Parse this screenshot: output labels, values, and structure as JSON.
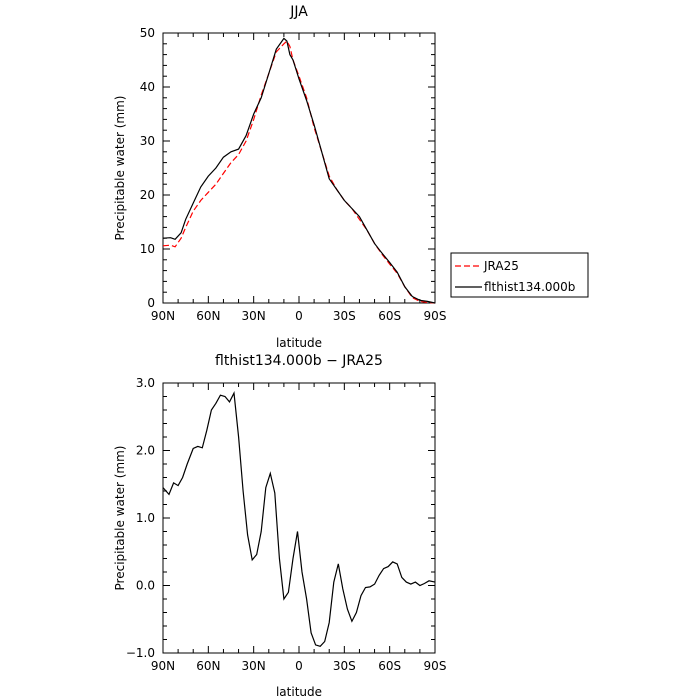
{
  "chart_data": [
    {
      "type": "line",
      "title": "JJA",
      "xlabel": "latitude",
      "ylabel": "Precipitable water  (mm)",
      "xlim": [
        90,
        -90
      ],
      "ylim": [
        0,
        50
      ],
      "x_tick_values": [
        90,
        60,
        30,
        0,
        -30,
        -60,
        -90
      ],
      "x_tick_labels": [
        "90N",
        "60N",
        "30N",
        "0",
        "30S",
        "60S",
        "90S"
      ],
      "y_tick_values": [
        0,
        10,
        20,
        30,
        40,
        50
      ],
      "y_tick_labels": [
        "0",
        "10",
        "20",
        "30",
        "40",
        "50"
      ],
      "legend_position": "right",
      "series": [
        {
          "name": "JRA25",
          "color": "#ff0000",
          "dash": "dashed",
          "x": [
            90,
            85,
            82,
            78,
            75,
            70,
            65,
            60,
            55,
            50,
            45,
            40,
            35,
            30,
            25,
            20,
            15,
            10,
            8,
            6,
            4,
            0,
            -5,
            -10,
            -15,
            -20,
            -25,
            -30,
            -35,
            -40,
            -45,
            -50,
            -55,
            -60,
            -65,
            -70,
            -75,
            -80,
            -85,
            -90
          ],
          "values": [
            10.6,
            10.7,
            10.4,
            12.0,
            14.0,
            17.0,
            19.0,
            20.5,
            22.0,
            24.0,
            26.0,
            27.5,
            30.0,
            34.0,
            38.5,
            42.5,
            46.5,
            48.0,
            48.5,
            47.5,
            45.0,
            42.0,
            38.0,
            32.5,
            28.0,
            23.5,
            21.0,
            19.0,
            17.5,
            15.5,
            13.5,
            11.0,
            9.0,
            7.2,
            5.5,
            3.0,
            1.0,
            0.3,
            0.1,
            0.0
          ]
        },
        {
          "name": "flthist134.000b",
          "color": "#000000",
          "dash": "solid",
          "x": [
            90,
            85,
            82,
            78,
            75,
            70,
            65,
            60,
            55,
            50,
            45,
            40,
            35,
            30,
            25,
            20,
            15,
            10,
            8,
            6,
            4,
            0,
            -5,
            -10,
            -15,
            -20,
            -25,
            -30,
            -35,
            -40,
            -45,
            -50,
            -55,
            -60,
            -65,
            -70,
            -75,
            -80,
            -85,
            -90
          ],
          "values": [
            12.0,
            12.1,
            11.8,
            13.0,
            15.5,
            18.5,
            21.5,
            23.5,
            25.0,
            27.0,
            28.0,
            28.5,
            31.0,
            35.0,
            38.0,
            42.5,
            47.0,
            49.0,
            48.5,
            46.0,
            45.0,
            41.5,
            37.5,
            33.0,
            28.0,
            23.0,
            21.0,
            19.0,
            17.5,
            16.0,
            13.5,
            11.0,
            9.2,
            7.5,
            5.7,
            3.0,
            1.2,
            0.5,
            0.3,
            0.0
          ]
        }
      ]
    },
    {
      "type": "line",
      "title": "flthist134.000b  −  JRA25",
      "xlabel": "latitude",
      "ylabel": "Precipitable water  (mm)",
      "xlim": [
        90,
        -90
      ],
      "ylim": [
        -1.0,
        3.0
      ],
      "x_tick_values": [
        90,
        60,
        30,
        0,
        -30,
        -60,
        -90
      ],
      "x_tick_labels": [
        "90N",
        "60N",
        "30N",
        "0",
        "30S",
        "60S",
        "90S"
      ],
      "y_tick_values": [
        -1.0,
        0.0,
        1.0,
        2.0,
        3.0
      ],
      "y_tick_labels": [
        "−1.0",
        "0.0",
        "1.0",
        "2.0",
        "3.0"
      ],
      "series": [
        {
          "name": "",
          "color": "#000000",
          "dash": "solid",
          "x": [
            90,
            86,
            83,
            80,
            77,
            74,
            70,
            67,
            64,
            61,
            58,
            55,
            52,
            49,
            46,
            43,
            40,
            37,
            34,
            31,
            28,
            25,
            22,
            19,
            16,
            13,
            10,
            7,
            4,
            1,
            -2,
            -5,
            -8,
            -11,
            -14,
            -17,
            -20,
            -23,
            -26,
            -29,
            -32,
            -35,
            -38,
            -41,
            -44,
            -47,
            -50,
            -53,
            -56,
            -59,
            -62,
            -65,
            -68,
            -71,
            -74,
            -77,
            -80,
            -83,
            -86,
            -90
          ],
          "values": [
            1.45,
            1.35,
            1.52,
            1.48,
            1.6,
            1.8,
            2.03,
            2.06,
            2.04,
            2.3,
            2.6,
            2.7,
            2.82,
            2.8,
            2.72,
            2.85,
            2.2,
            1.4,
            0.75,
            0.38,
            0.46,
            0.8,
            1.45,
            1.66,
            1.37,
            0.4,
            -0.2,
            -0.1,
            0.4,
            0.8,
            0.2,
            -0.2,
            -0.7,
            -0.88,
            -0.9,
            -0.83,
            -0.55,
            0.05,
            0.32,
            -0.05,
            -0.35,
            -0.53,
            -0.4,
            -0.15,
            -0.03,
            -0.02,
            0.02,
            0.15,
            0.25,
            0.28,
            0.35,
            0.32,
            0.12,
            0.05,
            0.02,
            0.05,
            0.0,
            0.03,
            0.07,
            0.05
          ]
        }
      ]
    }
  ]
}
